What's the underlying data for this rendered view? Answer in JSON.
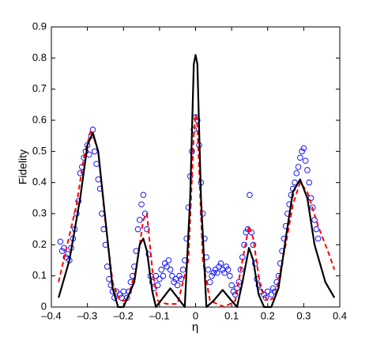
{
  "chart_data": {
    "type": "line",
    "xlabel": "η",
    "ylabel": "Fidelity",
    "xlim": [
      -0.4,
      0.4
    ],
    "ylim": [
      0,
      0.9
    ],
    "xticks": [
      {
        "value": -0.4,
        "label": "–0.4"
      },
      {
        "value": -0.3,
        "label": "–0.3"
      },
      {
        "value": -0.2,
        "label": "–0.2"
      },
      {
        "value": -0.1,
        "label": "–0.1"
      },
      0,
      0.1,
      0.2,
      0.3,
      0.4
    ],
    "yticks": [
      0,
      0.1,
      0.2,
      0.3,
      0.4,
      0.5,
      0.6,
      0.7,
      0.8,
      0.9
    ],
    "grid": false,
    "series": [
      {
        "type": "scatter",
        "color": "#0000ff",
        "x": [
          -0.375,
          -0.37,
          -0.365,
          -0.36,
          -0.355,
          -0.35,
          -0.345,
          -0.34,
          -0.335,
          -0.33,
          -0.325,
          -0.32,
          -0.315,
          -0.31,
          -0.305,
          -0.3,
          -0.295,
          -0.29,
          -0.285,
          -0.28,
          -0.275,
          -0.27,
          -0.265,
          -0.26,
          -0.255,
          -0.25,
          -0.245,
          -0.24,
          -0.235,
          -0.23,
          -0.225,
          -0.22,
          -0.21,
          -0.205,
          -0.2,
          -0.19,
          -0.185,
          -0.18,
          -0.175,
          -0.17,
          -0.165,
          -0.16,
          -0.155,
          -0.15,
          -0.145,
          -0.14,
          -0.135,
          -0.13,
          -0.125,
          -0.12,
          -0.115,
          -0.11,
          -0.105,
          -0.1,
          -0.095,
          -0.09,
          -0.085,
          -0.08,
          -0.075,
          -0.07,
          -0.065,
          -0.06,
          -0.055,
          -0.05,
          -0.045,
          -0.04,
          -0.035,
          -0.03,
          -0.025,
          -0.02,
          -0.015,
          -0.01,
          -0.005,
          0,
          0.005,
          0.01,
          0.015,
          0.02,
          0.025,
          0.03,
          0.035,
          0.04,
          0.045,
          0.05,
          0.055,
          0.06,
          0.065,
          0.07,
          0.075,
          0.08,
          0.085,
          0.09,
          0.095,
          0.1,
          0.105,
          0.11,
          0.115,
          0.12,
          0.125,
          0.13,
          0.135,
          0.14,
          0.145,
          0.15,
          0.155,
          0.16,
          0.165,
          0.17,
          0.175,
          0.18,
          0.19,
          0.195,
          0.2,
          0.21,
          0.215,
          0.22,
          0.225,
          0.23,
          0.235,
          0.24,
          0.245,
          0.25,
          0.255,
          0.26,
          0.265,
          0.27,
          0.275,
          0.28,
          0.285,
          0.29,
          0.295,
          0.3,
          0.305,
          0.31,
          0.315,
          0.32,
          0.325,
          0.33,
          0.335,
          0.34
        ],
        "values": [
          0.21,
          0.18,
          0.19,
          0.16,
          0.17,
          0.15,
          0.19,
          0.22,
          0.25,
          0.3,
          0.34,
          0.43,
          0.45,
          0.48,
          0.5,
          0.52,
          0.49,
          0.55,
          0.57,
          0.5,
          0.46,
          0.41,
          0.38,
          0.3,
          0.25,
          0.2,
          0.13,
          0.09,
          0.07,
          0.05,
          0.03,
          0.05,
          0.04,
          0.03,
          0.05,
          0.03,
          0.05,
          0.08,
          0.1,
          0.13,
          0.18,
          0.25,
          0.28,
          0.33,
          0.36,
          0.3,
          0.25,
          0.17,
          0.1,
          0.08,
          0.06,
          0.1,
          0.07,
          0.09,
          0.12,
          0.1,
          0.14,
          0.13,
          0.15,
          0.12,
          0.1,
          0.08,
          0.09,
          0.07,
          0.1,
          0.09,
          0.12,
          0.15,
          0.22,
          0.32,
          0.42,
          0.5,
          0.57,
          0.61,
          0.6,
          0.52,
          0.4,
          0.3,
          0.22,
          0.16,
          0.12,
          0.08,
          0.1,
          0.11,
          0.12,
          0.11,
          0.13,
          0.14,
          0.12,
          0.11,
          0.13,
          0.12,
          0.1,
          0.07,
          0.05,
          0.04,
          0.06,
          0.08,
          0.12,
          0.16,
          0.2,
          0.24,
          0.25,
          0.36,
          0.24,
          0.2,
          0.14,
          0.09,
          0.07,
          0.05,
          0.04,
          0.03,
          0.05,
          0.04,
          0.06,
          0.05,
          0.08,
          0.1,
          0.14,
          0.18,
          0.22,
          0.26,
          0.3,
          0.33,
          0.36,
          0.38,
          0.4,
          0.43,
          0.45,
          0.48,
          0.5,
          0.51,
          0.47,
          0.44,
          0.4,
          0.35,
          0.32,
          0.28,
          0.25,
          0.22
        ]
      },
      {
        "type": "line",
        "color": "#ff0000",
        "dash": true,
        "x": [
          -0.38,
          -0.36,
          -0.33,
          -0.31,
          -0.29,
          -0.27,
          -0.25,
          -0.23,
          -0.21,
          -0.19,
          -0.165,
          -0.145,
          -0.135,
          -0.12,
          -0.105,
          -0.08,
          -0.05,
          -0.02,
          -0.005,
          0,
          0.005,
          0.02,
          0.04,
          0.08,
          0.11,
          0.13,
          0.148,
          0.16,
          0.18,
          0.2,
          0.22,
          0.25,
          0.27,
          0.29,
          0.31,
          0.34,
          0.37,
          0.385
        ],
        "values": [
          0.08,
          0.18,
          0.33,
          0.48,
          0.57,
          0.5,
          0.27,
          0.08,
          0.02,
          0.02,
          0.12,
          0.28,
          0.3,
          0.12,
          0.02,
          0.01,
          0.01,
          0.15,
          0.55,
          0.62,
          0.58,
          0.15,
          0.02,
          0,
          0.02,
          0.15,
          0.26,
          0.22,
          0.06,
          0.02,
          0.03,
          0.2,
          0.33,
          0.4,
          0.37,
          0.26,
          0.17,
          0.12
        ]
      },
      {
        "type": "line",
        "color": "#000000",
        "dash": false,
        "x": [
          -0.38,
          -0.35,
          -0.32,
          -0.3,
          -0.285,
          -0.27,
          -0.25,
          -0.23,
          -0.215,
          -0.2,
          -0.17,
          -0.155,
          -0.145,
          -0.135,
          -0.12,
          -0.11,
          -0.09,
          -0.07,
          -0.05,
          -0.03,
          -0.015,
          -0.005,
          0,
          0.005,
          0.015,
          0.03,
          0.05,
          0.075,
          0.1,
          0.115,
          0.13,
          0.148,
          0.16,
          0.175,
          0.19,
          0.21,
          0.23,
          0.25,
          0.27,
          0.29,
          0.31,
          0.33,
          0.36,
          0.385
        ],
        "values": [
          0.03,
          0.15,
          0.35,
          0.52,
          0.56,
          0.5,
          0.28,
          0.06,
          0,
          0,
          0.08,
          0.2,
          0.22,
          0.18,
          0.05,
          0,
          0.03,
          0.06,
          0.03,
          0,
          0.35,
          0.78,
          0.81,
          0.78,
          0.35,
          0,
          0.02,
          0.055,
          0.02,
          0,
          0.08,
          0.19,
          0.15,
          0.04,
          0,
          0,
          0.06,
          0.22,
          0.37,
          0.41,
          0.35,
          0.2,
          0.08,
          0.03
        ]
      }
    ]
  }
}
